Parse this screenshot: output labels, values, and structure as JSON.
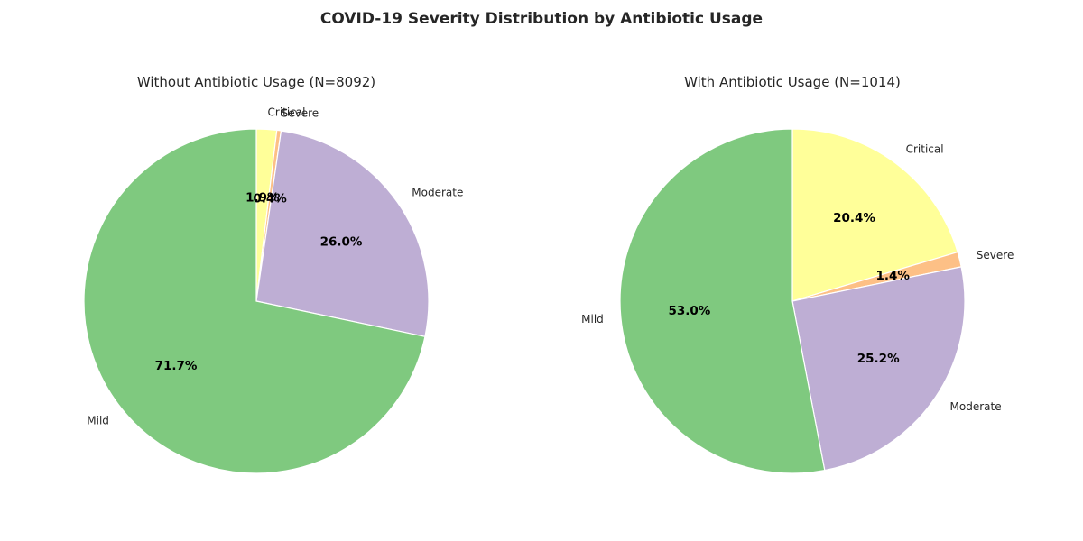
{
  "suptitle": "COVID-19 Severity Distribution by Antibiotic Usage",
  "chart_data": [
    {
      "type": "pie",
      "title": "Without Antibiotic Usage (N=8092)",
      "categories": [
        "Critical",
        "Severe",
        "Moderate",
        "Mild"
      ],
      "values": [
        1.9,
        0.4,
        26.0,
        71.7
      ],
      "value_labels": [
        "1.9%",
        "0.4%",
        "26.0%",
        "71.7%"
      ],
      "colors": [
        "#ffff99",
        "#fdc086",
        "#beaed4",
        "#7fc97f"
      ],
      "start_angle": 90,
      "direction": "clockwise"
    },
    {
      "type": "pie",
      "title": "With Antibiotic Usage (N=1014)",
      "categories": [
        "Critical",
        "Severe",
        "Moderate",
        "Mild"
      ],
      "values": [
        20.4,
        1.4,
        25.2,
        53.0
      ],
      "value_labels": [
        "20.4%",
        "1.4%",
        "25.2%",
        "53.0%"
      ],
      "colors": [
        "#ffff99",
        "#fdc086",
        "#beaed4",
        "#7fc97f"
      ],
      "start_angle": 90,
      "direction": "clockwise"
    }
  ]
}
